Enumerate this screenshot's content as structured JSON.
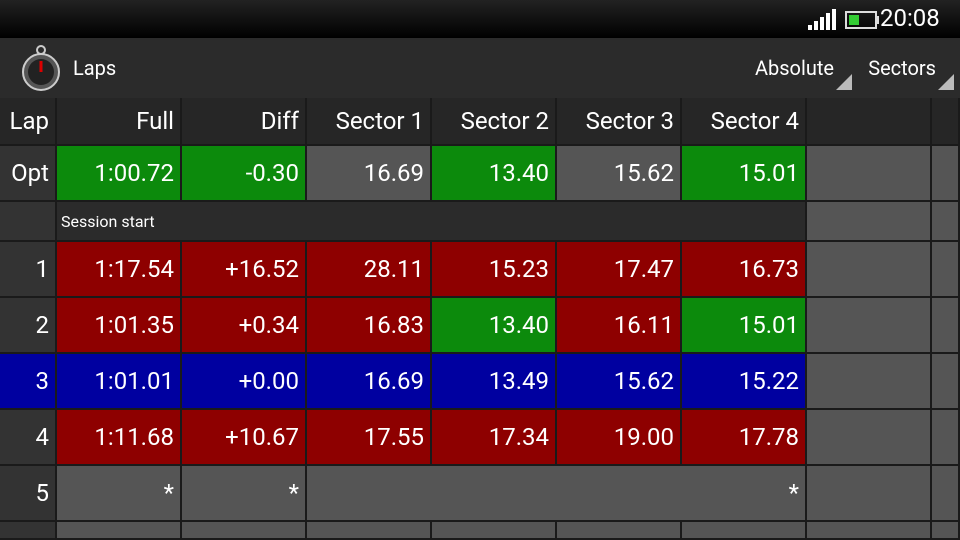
{
  "status_bar": {
    "time": "20:08"
  },
  "action_bar": {
    "title": "Laps",
    "spinners": [
      "Absolute",
      "Sectors"
    ]
  },
  "table": {
    "columns": [
      "Lap",
      "Full",
      "Diff",
      "Sector 1",
      "Sector 2",
      "Sector 3",
      "Sector 4"
    ],
    "opt": {
      "lap": "Opt",
      "cells": [
        "1:00.72",
        "-0.30",
        "16.69",
        "13.40",
        "15.62",
        "15.01"
      ],
      "colors": [
        "#0c8a0c",
        "#0c8a0c",
        "#555555",
        "#0c8a0c",
        "#555555",
        "#0c8a0c"
      ]
    },
    "section": "Session start",
    "rows": [
      {
        "lap": "1",
        "cells": [
          "1:17.54",
          "+16.52",
          "28.11",
          "15.23",
          "17.47",
          "16.73"
        ],
        "colors": [
          "#8e0000",
          "#8e0000",
          "#8e0000",
          "#8e0000",
          "#8e0000",
          "#8e0000"
        ]
      },
      {
        "lap": "2",
        "cells": [
          "1:01.35",
          "+0.34",
          "16.83",
          "13.40",
          "16.11",
          "15.01"
        ],
        "colors": [
          "#8e0000",
          "#8e0000",
          "#8e0000",
          "#0c8a0c",
          "#8e0000",
          "#0c8a0c"
        ]
      },
      {
        "lap": "3",
        "cells": [
          "1:01.01",
          "+0.00",
          "16.69",
          "13.49",
          "15.62",
          "15.22"
        ],
        "colors": [
          "#0000a0",
          "#0000a0",
          "#0000a0",
          "#0000a0",
          "#0000a0",
          "#0000a0"
        ],
        "highlight": "#0000a0"
      },
      {
        "lap": "4",
        "cells": [
          "1:11.68",
          "+10.67",
          "17.55",
          "17.34",
          "19.00",
          "17.78"
        ],
        "colors": [
          "#8e0000",
          "#8e0000",
          "#8e0000",
          "#8e0000",
          "#8e0000",
          "#8e0000"
        ]
      }
    ],
    "pending": {
      "lap": "5",
      "full": "*",
      "diff": "*",
      "sectors": "*"
    }
  }
}
